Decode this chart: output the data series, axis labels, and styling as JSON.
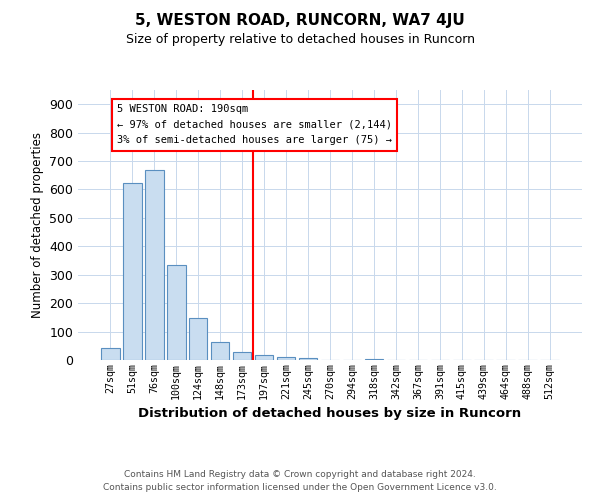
{
  "title": "5, WESTON ROAD, RUNCORN, WA7 4JU",
  "subtitle": "Size of property relative to detached houses in Runcorn",
  "xlabel": "Distribution of detached houses by size in Runcorn",
  "ylabel": "Number of detached properties",
  "categories": [
    "27sqm",
    "51sqm",
    "76sqm",
    "100sqm",
    "124sqm",
    "148sqm",
    "173sqm",
    "197sqm",
    "221sqm",
    "245sqm",
    "270sqm",
    "294sqm",
    "318sqm",
    "342sqm",
    "367sqm",
    "391sqm",
    "415sqm",
    "439sqm",
    "464sqm",
    "488sqm",
    "512sqm"
  ],
  "values": [
    43,
    623,
    668,
    336,
    148,
    62,
    28,
    18,
    10,
    8,
    0,
    0,
    5,
    0,
    0,
    0,
    0,
    0,
    0,
    0,
    0
  ],
  "bar_color": "#c9ddf0",
  "bar_edge_color": "#5a8fc0",
  "highlight_line_index": 7,
  "annotation_box_text": "5 WESTON ROAD: 190sqm\n← 97% of detached houses are smaller (2,144)\n3% of semi-detached houses are larger (75) →",
  "ylim": [
    0,
    950
  ],
  "yticks": [
    0,
    100,
    200,
    300,
    400,
    500,
    600,
    700,
    800,
    900
  ],
  "footer_line1": "Contains HM Land Registry data © Crown copyright and database right 2024.",
  "footer_line2": "Contains public sector information licensed under the Open Government Licence v3.0.",
  "background_color": "#ffffff",
  "grid_color": "#c8d8ec"
}
